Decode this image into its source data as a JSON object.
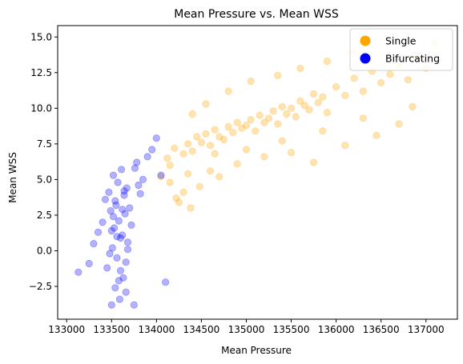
{
  "chart_data": {
    "type": "scatter",
    "title": "Mean Pressure vs. Mean WSS",
    "xlabel": "Mean Pressure",
    "ylabel": "Mean WSS",
    "xlim": [
      132900,
      137350
    ],
    "ylim": [
      -4.8,
      15.8
    ],
    "xticks": [
      133000,
      133500,
      134000,
      134500,
      135000,
      135500,
      136000,
      136500,
      137000
    ],
    "xtick_labels": [
      "133000",
      "133500",
      "134000",
      "134500",
      "135000",
      "135500",
      "136000",
      "136500",
      "137000"
    ],
    "yticks": [
      -2.5,
      0.0,
      2.5,
      5.0,
      7.5,
      10.0,
      12.5,
      15.0
    ],
    "ytick_labels": [
      "−2.5",
      "0.0",
      "2.5",
      "5.0",
      "7.5",
      "10.0",
      "12.5",
      "15.0"
    ],
    "grid": false,
    "legend": {
      "position": "top-right"
    },
    "colors": {
      "Single": "#ffa500",
      "Bifurcating": "#0000ff"
    },
    "marker_alpha": 0.3,
    "series": [
      {
        "name": "Single",
        "color": "#ffa500",
        "x": [
          134050,
          134120,
          134200,
          134300,
          134350,
          134400,
          134450,
          134500,
          134550,
          134600,
          134650,
          134700,
          134750,
          134800,
          134850,
          134900,
          134950,
          135000,
          135050,
          135100,
          135150,
          135200,
          135250,
          135300,
          135350,
          135400,
          135450,
          135500,
          135550,
          135600,
          135650,
          135700,
          135750,
          135800,
          135850,
          135900,
          136000,
          136100,
          136200,
          136300,
          136400,
          136500,
          136600,
          136700,
          136800,
          136900,
          137000,
          137100,
          134250,
          134300,
          134380,
          134480,
          134150,
          134220,
          134600,
          134700,
          134900,
          135200,
          135500,
          135750,
          136100,
          136450,
          136700,
          134400,
          134550,
          134800,
          135050,
          135350,
          135600,
          135900,
          136200,
          134150,
          134350,
          134650,
          135000,
          135400,
          135850,
          136300,
          136850
        ],
        "y": [
          5.2,
          6.5,
          7.2,
          6.8,
          7.5,
          7.0,
          8.0,
          7.6,
          8.2,
          7.4,
          8.5,
          8.0,
          7.8,
          8.7,
          8.3,
          9.0,
          8.6,
          8.8,
          9.2,
          8.4,
          9.5,
          9.0,
          9.3,
          9.8,
          8.9,
          10.1,
          9.6,
          10.0,
          9.4,
          10.5,
          10.2,
          9.9,
          11.0,
          10.4,
          10.8,
          9.7,
          11.5,
          10.9,
          12.1,
          11.2,
          12.6,
          11.8,
          12.4,
          13.1,
          12.0,
          13.6,
          12.8,
          14.6,
          3.4,
          4.1,
          3.0,
          4.5,
          4.8,
          3.7,
          5.6,
          5.2,
          6.1,
          6.6,
          6.9,
          6.2,
          7.4,
          8.1,
          8.9,
          9.6,
          10.3,
          11.2,
          11.9,
          12.3,
          12.8,
          13.3,
          13.9,
          6.0,
          5.4,
          6.8,
          7.1,
          7.7,
          8.4,
          9.3,
          10.1
        ]
      },
      {
        "name": "Bifurcating",
        "color": "#0000ff",
        "x": [
          133130,
          133250,
          133300,
          133350,
          133400,
          133430,
          133450,
          133470,
          133490,
          133500,
          133510,
          133520,
          133530,
          133540,
          133550,
          133560,
          133570,
          133580,
          133590,
          133600,
          133610,
          133620,
          133630,
          133640,
          133650,
          133660,
          133670,
          133680,
          133700,
          133720,
          133750,
          133780,
          133800,
          133850,
          133900,
          133950,
          134000,
          134050,
          134100,
          133480,
          133520,
          133560,
          133600,
          133640,
          133680,
          133540,
          133580,
          133620,
          133500,
          133660,
          133760,
          133820
        ],
        "y": [
          -1.5,
          -0.9,
          0.5,
          1.3,
          2.0,
          3.6,
          -1.2,
          4.1,
          2.8,
          -3.8,
          0.2,
          5.3,
          1.6,
          -2.6,
          3.2,
          -0.5,
          4.8,
          2.1,
          -3.4,
          0.9,
          5.7,
          1.1,
          -1.9,
          3.9,
          2.6,
          -2.9,
          4.4,
          0.1,
          3.0,
          1.8,
          -3.8,
          6.2,
          4.6,
          5.0,
          6.6,
          7.1,
          7.9,
          5.3,
          -2.2,
          -0.2,
          2.4,
          1.0,
          -1.4,
          4.2,
          0.6,
          3.5,
          -2.1,
          2.9,
          1.4,
          -0.8,
          5.8,
          4.0
        ]
      }
    ]
  }
}
